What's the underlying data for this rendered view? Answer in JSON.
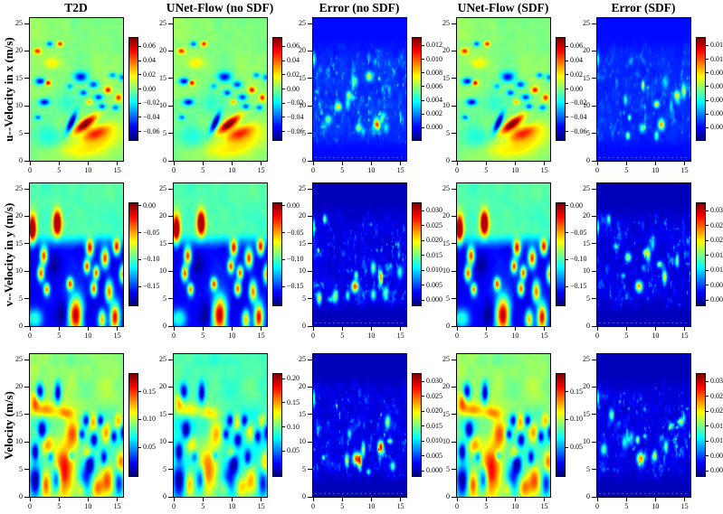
{
  "chart_data": {
    "type": "heatmap",
    "grid": {
      "rows": 3,
      "cols": 5
    },
    "colormap": "jet",
    "background": "#ffffff",
    "column_titles": [
      "T2D",
      "UNet-Flow (no SDF)",
      "Error (no SDF)",
      "UNet-Flow (SDF)",
      "Error (SDF)"
    ],
    "row_labels": [
      "u--Velocity in x (m/s)",
      "v--Velocity in y (m/s)",
      "Velocity (m/s)"
    ],
    "x_ticks": [
      0,
      5,
      10,
      15
    ],
    "y_ticks": [
      0,
      5,
      10,
      15,
      20,
      25
    ],
    "x_range": [
      0,
      16
    ],
    "y_range": [
      0,
      26
    ],
    "panels": [
      {
        "row": 0,
        "col": 0,
        "name": "T2D",
        "row_label": "u--Velocity in x (m/s)",
        "field": "u",
        "vmin": -0.072,
        "vmax": 0.072,
        "cb_values": [
          0.06,
          0.04,
          0.02,
          0,
          -0.02,
          -0.04,
          -0.06
        ],
        "cb_labels": [
          "0.06",
          "0.04",
          "0.02",
          "0.00",
          "−0.02",
          "−0.04",
          "−0.06"
        ]
      },
      {
        "row": 0,
        "col": 1,
        "name": "UNet-Flow (no SDF)",
        "row_label": "u--Velocity in x (m/s)",
        "field": "u",
        "vmin": -0.072,
        "vmax": 0.072,
        "cb_values": [
          0.06,
          0.04,
          0.02,
          0,
          -0.02,
          -0.04,
          -0.06
        ],
        "cb_labels": [
          "0.06",
          "0.04",
          "0.02",
          "0.00",
          "−0.02",
          "−0.04",
          "−0.06"
        ]
      },
      {
        "row": 0,
        "col": 2,
        "name": "Error (no SDF)",
        "row_label": "u--Velocity in x (m/s)",
        "field": "error",
        "vmin": -0.0018,
        "vmax": 0.0131,
        "cb_values": [
          0.012,
          0.01,
          0.008,
          0.006,
          0.004,
          0.002,
          0
        ],
        "cb_labels": [
          "0.012",
          "0.010",
          "0.008",
          "0.006",
          "0.004",
          "0.002",
          "0.000"
        ]
      },
      {
        "row": 0,
        "col": 3,
        "name": "UNet-Flow (SDF)",
        "row_label": "u--Velocity in x (m/s)",
        "field": "u",
        "vmin": -0.072,
        "vmax": 0.072,
        "cb_values": [
          0.06,
          0.04,
          0.02,
          0,
          -0.02,
          -0.04,
          -0.06
        ],
        "cb_labels": [
          "0.06",
          "0.04",
          "0.02",
          "0.00",
          "−0.02",
          "−0.04",
          "−0.06"
        ]
      },
      {
        "row": 0,
        "col": 4,
        "name": "Error (SDF)",
        "row_label": "u--Velocity in x (m/s)",
        "field": "error",
        "vmin": -0.0018,
        "vmax": 0.0131,
        "cb_values": [
          0.012,
          0.01,
          0.008,
          0.006,
          0.004,
          0.002,
          0
        ],
        "cb_labels": [
          "0.012",
          "0.010",
          "0.008",
          "0.006",
          "0.004",
          "0.002",
          "0.000"
        ]
      },
      {
        "row": 1,
        "col": 0,
        "name": "T2D",
        "row_label": "v--Velocity in y (m/s)",
        "field": "v",
        "vmin": -0.185,
        "vmax": 0.005,
        "cb_values": [
          0,
          -0.05,
          -0.1,
          -0.15
        ],
        "cb_labels": [
          "0.00",
          "−0.05",
          "−0.10",
          "−0.15"
        ]
      },
      {
        "row": 1,
        "col": 1,
        "name": "UNet-Flow (no SDF)",
        "row_label": "v--Velocity in y (m/s)",
        "field": "v",
        "vmin": -0.185,
        "vmax": 0.005,
        "cb_values": [
          0,
          -0.05,
          -0.1,
          -0.15
        ],
        "cb_labels": [
          "0.00",
          "−0.05",
          "−0.10",
          "−0.15"
        ]
      },
      {
        "row": 1,
        "col": 2,
        "name": "Error (no SDF)",
        "row_label": "v--Velocity in y (m/s)",
        "field": "error",
        "vmin": -0.0018,
        "vmax": 0.0325,
        "cb_values": [
          0.03,
          0.025,
          0.02,
          0.015,
          0.01,
          0.005,
          0
        ],
        "cb_labels": [
          "0.030",
          "0.025",
          "0.020",
          "0.015",
          "0.010",
          "0.005",
          "0.000"
        ]
      },
      {
        "row": 1,
        "col": 3,
        "name": "UNet-Flow (SDF)",
        "row_label": "v--Velocity in y (m/s)",
        "field": "v",
        "vmin": -0.185,
        "vmax": 0.005,
        "cb_values": [
          0,
          -0.05,
          -0.1,
          -0.15
        ],
        "cb_labels": [
          "0.00",
          "−0.05",
          "−0.10",
          "−0.15"
        ]
      },
      {
        "row": 1,
        "col": 4,
        "name": "Error (SDF)",
        "row_label": "v--Velocity in y (m/s)",
        "field": "error",
        "vmin": -0.0018,
        "vmax": 0.0325,
        "cb_values": [
          0.03,
          0.025,
          0.02,
          0.015,
          0.01,
          0.005,
          0
        ],
        "cb_labels": [
          "0.030",
          "0.025",
          "0.020",
          "0.015",
          "0.010",
          "0.005",
          "0.000"
        ]
      },
      {
        "row": 2,
        "col": 0,
        "name": "T2D",
        "row_label": "Velocity (m/s)",
        "field": "mag",
        "vmin": -0.002,
        "vmax": 0.182,
        "cb_values": [
          0.15,
          0.1,
          0.05
        ],
        "cb_labels": [
          "0.15",
          "0.10",
          "0.05"
        ]
      },
      {
        "row": 2,
        "col": 1,
        "name": "UNet-Flow (no SDF)",
        "row_label": "Velocity (m/s)",
        "field": "mag",
        "vmin": -0.002,
        "vmax": 0.21,
        "cb_values": [
          0.2,
          0.15,
          0.1,
          0.05
        ],
        "cb_labels": [
          "0.20",
          "0.15",
          "0.10",
          "0.05"
        ]
      },
      {
        "row": 2,
        "col": 2,
        "name": "Error (no SDF)",
        "row_label": "Velocity (m/s)",
        "field": "error",
        "vmin": -0.0018,
        "vmax": 0.0325,
        "cb_values": [
          0.03,
          0.025,
          0.02,
          0.015,
          0.01,
          0.005,
          0
        ],
        "cb_labels": [
          "0.030",
          "0.025",
          "0.020",
          "0.015",
          "0.010",
          "0.005",
          "0.000"
        ]
      },
      {
        "row": 2,
        "col": 3,
        "name": "UNet-Flow (SDF)",
        "row_label": "Velocity (m/s)",
        "field": "mag",
        "vmin": -0.002,
        "vmax": 0.182,
        "cb_values": [
          0.15,
          0.1,
          0.05
        ],
        "cb_labels": [
          "0.15",
          "0.10",
          "0.05"
        ]
      },
      {
        "row": 2,
        "col": 4,
        "name": "Error (SDF)",
        "row_label": "Velocity (m/s)",
        "field": "error",
        "vmin": -0.0018,
        "vmax": 0.0325,
        "cb_values": [
          0.03,
          0.025,
          0.02,
          0.015,
          0.01,
          0.005,
          0
        ],
        "cb_labels": [
          "0.030",
          "0.025",
          "0.020",
          "0.015",
          "0.010",
          "0.005",
          "0.000"
        ]
      }
    ]
  }
}
